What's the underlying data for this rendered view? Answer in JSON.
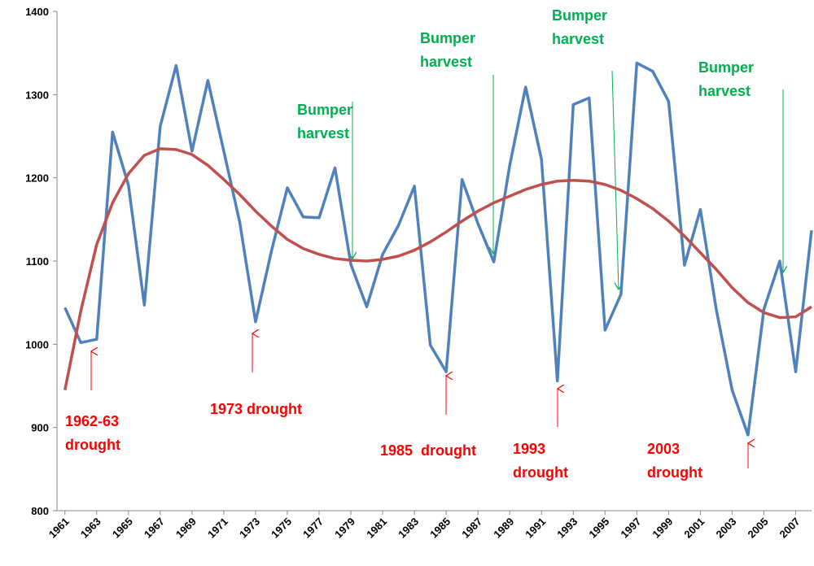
{
  "chart_data": {
    "type": "line",
    "x": [
      1961,
      1962,
      1963,
      1964,
      1965,
      1966,
      1967,
      1968,
      1969,
      1970,
      1971,
      1972,
      1973,
      1974,
      1975,
      1976,
      1977,
      1978,
      1979,
      1980,
      1981,
      1982,
      1983,
      1984,
      1985,
      1986,
      1987,
      1988,
      1989,
      1990,
      1991,
      1992,
      1993,
      1994,
      1995,
      1996,
      1997,
      1998,
      1999,
      2000,
      2001,
      2002,
      2003,
      2004,
      2005,
      2006,
      2007,
      2008
    ],
    "series": [
      {
        "color": "#4f81bd",
        "values": [
          1044,
          1002,
          1006,
          1255,
          1191,
          1047,
          1262,
          1335,
          1232,
          1317,
          1232,
          1147,
          1027,
          1112,
          1188,
          1153,
          1152,
          1212,
          1096,
          1045,
          1108,
          1143,
          1190,
          999,
          967,
          1198,
          1145,
          1099,
          1215,
          1309,
          1222,
          956,
          1288,
          1296,
          1017,
          1060,
          1338,
          1328,
          1292,
          1095,
          1162,
          1042,
          945,
          891,
          1042,
          1100,
          967,
          1137
        ]
      },
      {
        "color": "#c0504d",
        "values": [
          945,
          1040,
          1120,
          1170,
          1205,
          1227,
          1235,
          1234,
          1228,
          1215,
          1198,
          1180,
          1160,
          1142,
          1126,
          1115,
          1108,
          1103,
          1101,
          1100,
          1102,
          1106,
          1113,
          1123,
          1135,
          1148,
          1160,
          1170,
          1178,
          1186,
          1192,
          1196,
          1197,
          1196,
          1192,
          1185,
          1175,
          1163,
          1148,
          1130,
          1110,
          1090,
          1068,
          1050,
          1038,
          1032,
          1033,
          1045
        ]
      }
    ],
    "xlim": [
      1960.5,
      2008
    ],
    "xticks": [
      1961,
      1963,
      1965,
      1967,
      1969,
      1971,
      1973,
      1975,
      1977,
      1979,
      1981,
      1983,
      1985,
      1987,
      1989,
      1991,
      1993,
      1995,
      1997,
      1999,
      2001,
      2003,
      2005,
      2007
    ],
    "ylim": [
      800,
      1400
    ],
    "yticks": [
      800,
      900,
      1000,
      1100,
      1200,
      1300,
      1400
    ],
    "annotations": [
      {
        "lines": [
          "1962-63",
          "drought"
        ],
        "color": "#ff0000"
      },
      {
        "lines": [
          "1973 drought"
        ],
        "color": "#ff0000"
      },
      {
        "lines": [
          "1985  drought"
        ],
        "color": "#ff0000"
      },
      {
        "lines": [
          "1993",
          "drought"
        ],
        "color": "#ff0000"
      },
      {
        "lines": [
          "2003",
          "drought"
        ],
        "color": "#ff0000"
      },
      {
        "lines": [
          "Bumper",
          "harvest"
        ],
        "color": "#00b050"
      },
      {
        "lines": [
          "Bumper",
          "harvest"
        ],
        "color": "#00b050"
      },
      {
        "lines": [
          "Bumper",
          "harvest"
        ],
        "color": "#00b050"
      },
      {
        "lines": [
          "Bumper",
          "harvest"
        ],
        "color": "#00b050"
      }
    ]
  }
}
